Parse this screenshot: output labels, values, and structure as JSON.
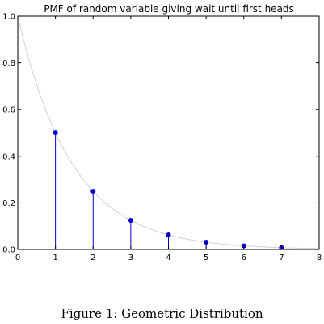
{
  "chart_data": {
    "type": "stem",
    "title": "PMF of random variable giving wait until first heads",
    "xlabel": "",
    "ylabel": "",
    "xlim": [
      0,
      8
    ],
    "ylim": [
      0,
      1.0
    ],
    "x_ticks": [
      0,
      1,
      2,
      3,
      4,
      5,
      6,
      7,
      8
    ],
    "y_ticks": [
      0.0,
      0.2,
      0.4,
      0.6,
      0.8,
      1.0
    ],
    "x_tick_labels": [
      "0",
      "1",
      "2",
      "3",
      "4",
      "5",
      "6",
      "7",
      "8"
    ],
    "y_tick_labels": [
      "0.0",
      "0.2",
      "0.4",
      "0.6",
      "0.8",
      "1.0"
    ],
    "grid": false,
    "series": [
      {
        "type": "stem",
        "color": "#0000cc",
        "x": [
          1,
          2,
          3,
          4,
          5,
          6,
          7
        ],
        "y": [
          0.5,
          0.25,
          0.125,
          0.0625,
          0.03125,
          0.015625,
          0.0078125
        ]
      },
      {
        "type": "line",
        "color": "#d0d0d0",
        "function": "0.5^x",
        "x_range": [
          0,
          8
        ]
      }
    ]
  },
  "caption": "Figure 1: Geometric Distribution"
}
